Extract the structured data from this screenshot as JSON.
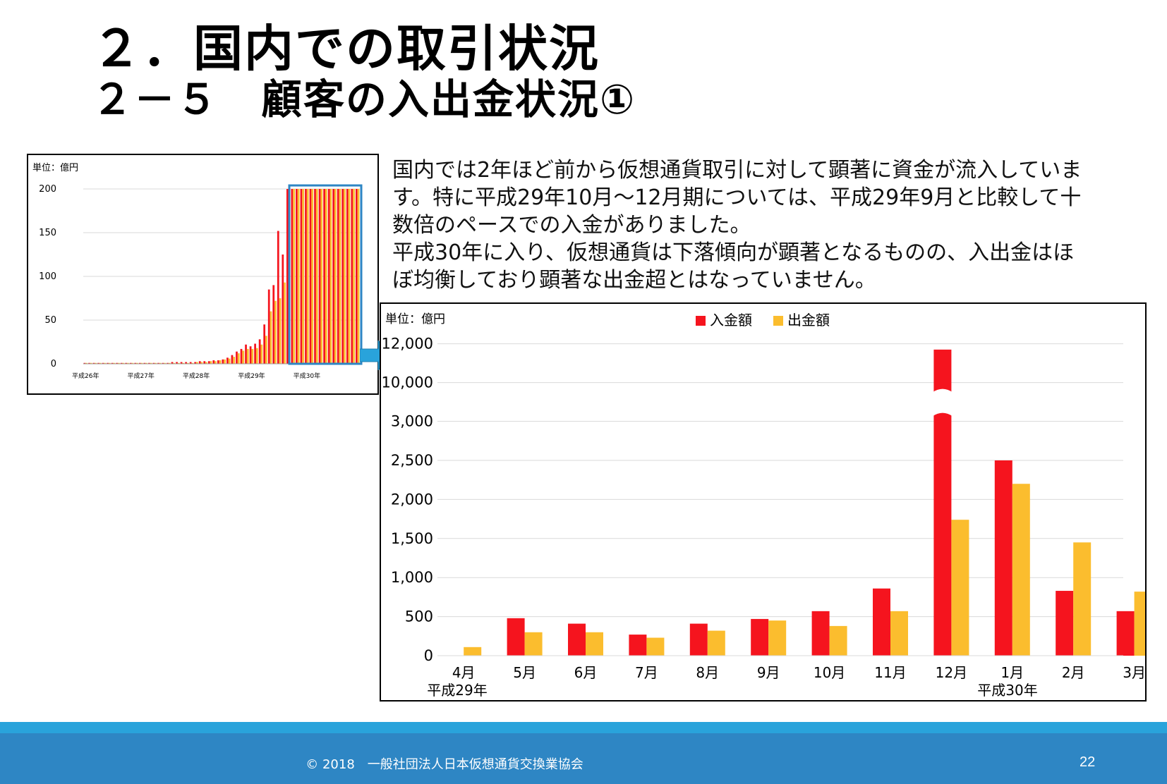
{
  "title": {
    "line1": "２．国内での取引状況",
    "line2": "２－５　顧客の入出金状況①"
  },
  "description": [
    "国内では2年ほど前から仮想通貨取引に対して顕著に資金が流入していま",
    "す。特に平成29年10月～12月期については、平成29年9月と比較して十",
    "数倍のペースでの入金がありました。",
    "平成30年に入り、仮想通貨は下落傾向が顕著となるものの、入出金はほ",
    "ぼ均衡しており顕著な出金超とはなっていません。"
  ],
  "colors": {
    "deposit": "#f5141e",
    "withdrawal": "#fbbd2e",
    "highlight_box": "#2e86c4",
    "arrow": "#29a3db",
    "footer": "#2e86c4"
  },
  "chart_data": [
    {
      "type": "bar",
      "unit_label": "単位：億円",
      "y_ticks": [
        "0",
        "50",
        "100",
        "150",
        "200"
      ],
      "ylim": [
        0,
        200
      ],
      "x_period_labels": [
        "平成26年",
        "平成27年",
        "平成28年",
        "平成29年",
        "平成30年"
      ],
      "series": [
        {
          "name": "入金額",
          "color": "#f5141e",
          "values": [
            1,
            1,
            1,
            1,
            1,
            1,
            1,
            1,
            1,
            1,
            1,
            1,
            1,
            1,
            1,
            1,
            1,
            1,
            1,
            2,
            2,
            2,
            2,
            2,
            2,
            3,
            3,
            3,
            4,
            4,
            5,
            7,
            10,
            14,
            17,
            22,
            20,
            23,
            28,
            45,
            85,
            90,
            152,
            125,
            200,
            200,
            200,
            200,
            200,
            200,
            200,
            200,
            200,
            200,
            200,
            200,
            200,
            200,
            200,
            200
          ]
        },
        {
          "name": "出金額",
          "color": "#fbbd2e",
          "values": [
            1,
            1,
            1,
            1,
            1,
            1,
            1,
            1,
            1,
            1,
            1,
            1,
            1,
            1,
            1,
            1,
            1,
            1,
            1,
            1,
            1,
            1,
            1,
            1,
            2,
            2,
            2,
            3,
            3,
            4,
            5,
            6,
            8,
            12,
            15,
            17,
            17,
            18,
            22,
            32,
            60,
            72,
            75,
            93,
            200,
            200,
            200,
            200,
            200,
            200,
            200,
            200,
            200,
            200,
            200,
            200,
            200,
            200,
            200,
            200
          ]
        }
      ]
    },
    {
      "type": "bar",
      "unit_label": "単位：億円",
      "legend": [
        "入金額",
        "出金額"
      ],
      "categories": [
        "4月",
        "5月",
        "6月",
        "7月",
        "8月",
        "9月",
        "10月",
        "11月",
        "12月",
        "1月",
        "2月",
        "3月"
      ],
      "year_labels": [
        "平成29年",
        "平成30年"
      ],
      "y_ticks": [
        "0",
        "500",
        "1,000",
        "1,500",
        "2,000",
        "2,500",
        "3,000",
        "10,000",
        "12,000"
      ],
      "axis_break": {
        "lower_max": 3000,
        "upper_min": 10000,
        "upper_max": 12000
      },
      "series": [
        {
          "name": "入金額",
          "color": "#f5141e",
          "values": [
            null,
            480,
            410,
            270,
            410,
            470,
            570,
            860,
            11700,
            2500,
            830,
            570
          ]
        },
        {
          "name": "出金額",
          "color": "#fbbd2e",
          "values": [
            110,
            300,
            300,
            230,
            320,
            450,
            380,
            570,
            1740,
            2200,
            1450,
            820
          ]
        }
      ]
    }
  ],
  "footer": {
    "copyright": "© 2018　一般社団法人日本仮想通貨交換業協会",
    "page_number": "22"
  }
}
